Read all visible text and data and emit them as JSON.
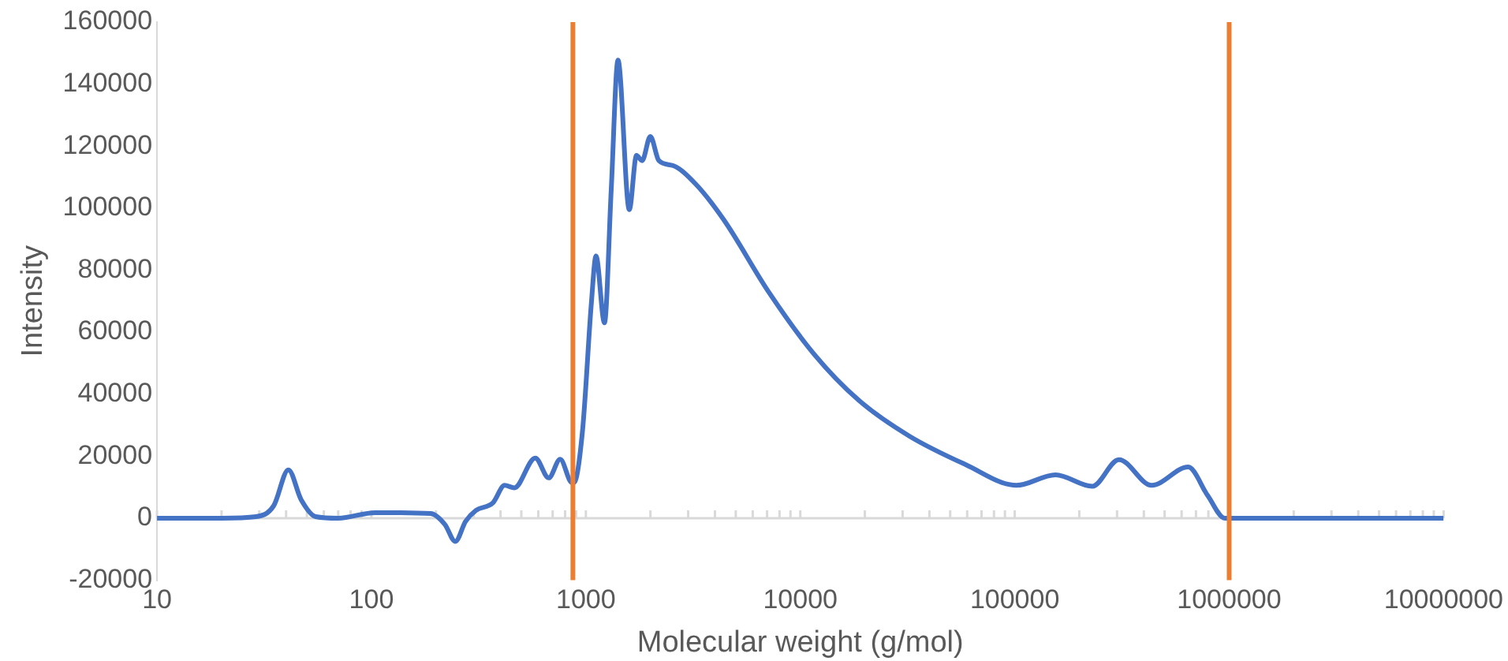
{
  "chart_data": {
    "type": "line",
    "xlabel": "Molecular weight (g/mol)",
    "ylabel": "Intensity",
    "log": "x",
    "xlim": [
      10,
      10000000
    ],
    "xticks": [
      10,
      100,
      1000,
      10000,
      100000,
      1000000,
      10000000
    ],
    "ylim": [
      -20000,
      160000
    ],
    "yticks": [
      -20000,
      0,
      20000,
      40000,
      60000,
      80000,
      100000,
      120000,
      140000,
      160000
    ],
    "grid": false,
    "legend": false,
    "marker": "none",
    "line_style": "solid",
    "series": [
      {
        "color": "#4472c4",
        "x": [
          10,
          20,
          29,
          35,
          41,
          47,
          55,
          70,
          104,
          189,
          220,
          246,
          275,
          307,
          369,
          418,
          464,
          581,
          671,
          759,
          861,
          880,
          964,
          1062,
          1115,
          1221,
          1313,
          1412,
          1594,
          1722,
          1829,
          1998,
          2190,
          2553,
          3250,
          4400,
          7130,
          11560,
          18750,
          32400,
          59000,
          101900,
          155000,
          230000,
          306000,
          435000,
          644000,
          794000,
          955000,
          2000000,
          10000000
        ],
        "values": [
          0,
          0,
          500,
          4000,
          15600,
          6000,
          500,
          0,
          1800,
          1500,
          -2000,
          -7500,
          -1000,
          2500,
          5000,
          10600,
          9800,
          19400,
          13000,
          19000,
          11500,
          11500,
          28000,
          69800,
          84600,
          63000,
          106000,
          147700,
          99500,
          117000,
          115300,
          123100,
          115300,
          113700,
          107800,
          96200,
          72900,
          53000,
          38000,
          26400,
          17300,
          10600,
          14000,
          10300,
          18900,
          10600,
          16500,
          7300,
          0,
          0,
          0
        ]
      }
    ],
    "ref_lines": [
      {
        "axis": "x",
        "value": 870,
        "color": "#ed7d31"
      },
      {
        "axis": "x",
        "value": 1000000,
        "color": "#ed7d31"
      }
    ]
  }
}
